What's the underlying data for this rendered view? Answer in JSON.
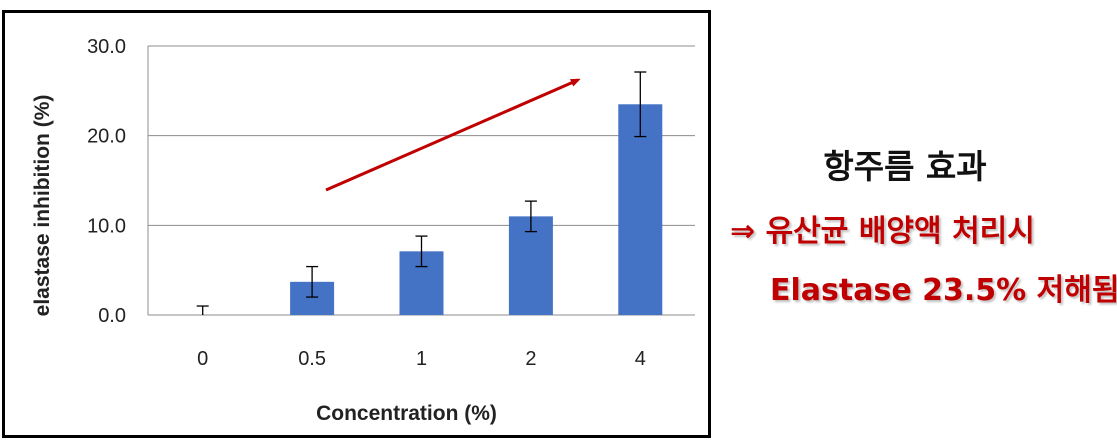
{
  "chart_data": {
    "type": "bar",
    "categories": [
      "0",
      "0.5",
      "1",
      "2",
      "4"
    ],
    "values": [
      0.0,
      3.7,
      7.1,
      11.0,
      23.5
    ],
    "error": [
      1.0,
      1.7,
      1.7,
      1.7,
      3.6
    ],
    "xlabel": "Concentration (%)",
    "ylabel": "elastase inhibition (%)",
    "ylim": [
      0,
      30
    ],
    "yticks": [
      "0.0",
      "10.0",
      "20.0",
      "30.0"
    ],
    "grid": true,
    "bar_color": "#4472c4",
    "arrow_color": "#c00000"
  },
  "annotation": {
    "title": "항주름 효과",
    "line1": "⇒ 유산균 배양액 처리시",
    "line2": "Elastase 23.5% 저해됨",
    "color": "#c00000"
  }
}
